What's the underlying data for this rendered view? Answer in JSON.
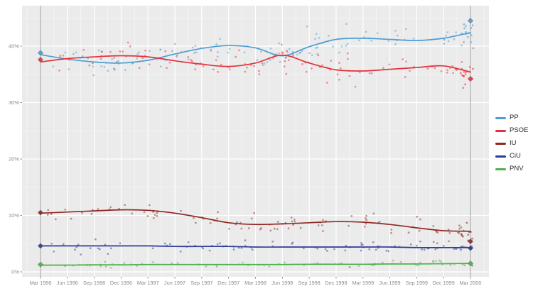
{
  "chart_data": {
    "type": "scatter",
    "title": "",
    "description": "Opinion polling for the Spanish general election, March 1996 to March 2000; poll scatter points with smoothed trend lines per party and diamond markers for election results",
    "x_axis": {
      "tick_labels": [
        "Mar 1996",
        "Jun 1996",
        "Sep 1996",
        "Dec 1996",
        "Mar 1997",
        "Jun 1997",
        "Sep 1997",
        "Dec 1997",
        "Mar 1998",
        "Jun 1998",
        "Sep 1998",
        "Dec 1998",
        "Mar 1999",
        "Jun 1999",
        "Sep 1999",
        "Dec 1999",
        "Mar 2000"
      ],
      "tick_months": [
        0,
        3,
        6,
        9,
        12,
        15,
        18,
        21,
        24,
        27,
        30,
        33,
        36,
        39,
        42,
        45,
        48
      ],
      "range_months": [
        0,
        48
      ]
    },
    "y_axis": {
      "tick_labels": [
        "0%",
        "10%",
        "20%",
        "30%",
        "40%"
      ],
      "tick_values": [
        0,
        10,
        20,
        30,
        40
      ],
      "minor_ticks": [
        5,
        15,
        25,
        35,
        45
      ],
      "range": [
        0,
        47
      ]
    },
    "trend_months": [
      0,
      3,
      6,
      9,
      12,
      15,
      18,
      21,
      24,
      27,
      30,
      33,
      36,
      39,
      42,
      45,
      48
    ],
    "series": [
      {
        "name": "PP",
        "color": "#4d9ed3",
        "trend": [
          38.5,
          37.7,
          37.2,
          37.0,
          37.5,
          38.6,
          39.6,
          40.1,
          39.7,
          38.3,
          39.9,
          41.2,
          41.4,
          41.2,
          41.0,
          41.4,
          42.4
        ],
        "scatter": {
          "seed": 101,
          "count": 112,
          "sigma": 1.15
        },
        "end_cluster": {
          "count": 14,
          "mean": 42.2,
          "sigma": 1.2
        }
      },
      {
        "name": "PSOE",
        "color": "#e3323d",
        "trend": [
          37.2,
          37.8,
          38.1,
          38.3,
          38.1,
          37.4,
          36.8,
          36.4,
          37.0,
          38.4,
          37.0,
          35.8,
          35.6,
          35.9,
          36.2,
          36.5,
          35.4
        ],
        "scatter": {
          "seed": 202,
          "count": 115,
          "sigma": 1.25
        },
        "end_cluster": {
          "count": 14,
          "mean": 34.8,
          "sigma": 1.0
        }
      },
      {
        "name": "IU",
        "color": "#8e2823",
        "trend": [
          10.4,
          10.6,
          10.8,
          11.0,
          10.9,
          10.4,
          9.6,
          8.7,
          8.4,
          8.5,
          8.7,
          8.9,
          8.8,
          8.4,
          7.8,
          7.3,
          7.2
        ],
        "scatter": {
          "seed": 303,
          "count": 98,
          "sigma": 0.85
        },
        "end_cluster": {
          "count": 9,
          "mean": 6.9,
          "sigma": 0.7
        }
      },
      {
        "name": "CiU",
        "color": "#2c3c97",
        "trend": [
          4.6,
          4.6,
          4.6,
          4.6,
          4.6,
          4.5,
          4.5,
          4.5,
          4.4,
          4.4,
          4.4,
          4.4,
          4.4,
          4.4,
          4.3,
          4.3,
          4.3
        ],
        "scatter": {
          "seed": 404,
          "count": 82,
          "sigma": 0.5
        },
        "end_cluster": {
          "count": 7,
          "mean": 4.2,
          "sigma": 0.35
        }
      },
      {
        "name": "PNV",
        "color": "#4eb04e",
        "trend": [
          1.2,
          1.2,
          1.25,
          1.25,
          1.3,
          1.3,
          1.3,
          1.3,
          1.3,
          1.3,
          1.35,
          1.35,
          1.35,
          1.4,
          1.4,
          1.45,
          1.5
        ],
        "scatter": {
          "seed": 505,
          "count": 62,
          "sigma": 0.3
        },
        "end_cluster": {
          "count": 5,
          "mean": 1.5,
          "sigma": 0.25
        }
      }
    ],
    "elections": [
      {
        "label": "Mar 1996",
        "month": 0,
        "results": {
          "PP": 38.8,
          "PSOE": 37.6,
          "IU": 10.5,
          "CiU": 4.6,
          "PNV": 1.3
        }
      },
      {
        "label": "Mar 2000",
        "month": 48,
        "results": {
          "PP": 44.5,
          "PSOE": 34.2,
          "IU": 5.4,
          "CiU": 4.2,
          "PNV": 1.5
        }
      }
    ],
    "legend": {
      "position": "right",
      "entries": [
        "PP",
        "PSOE",
        "IU",
        "CiU",
        "PNV"
      ]
    },
    "style": {
      "panel_background": "#ebebeb",
      "grid_major_color": "#ffffff",
      "grid_minor_color": "#ffffff",
      "election_line_color": "#9d9d9d",
      "tick_label_color": "#8c8c8c",
      "tick_mark_color": "#707070",
      "legend_text_color": "#2b2b2b"
    }
  }
}
